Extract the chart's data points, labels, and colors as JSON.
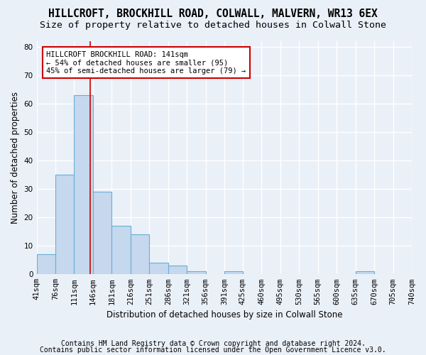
{
  "title": "HILLCROFT, BROCKHILL ROAD, COLWALL, MALVERN, WR13 6EX",
  "subtitle": "Size of property relative to detached houses in Colwall Stone",
  "xlabel": "Distribution of detached houses by size in Colwall Stone",
  "ylabel": "Number of detached properties",
  "footer1": "Contains HM Land Registry data © Crown copyright and database right 2024.",
  "footer2": "Contains public sector information licensed under the Open Government Licence v3.0.",
  "bar_edges": [
    41,
    76,
    111,
    146,
    181,
    216,
    251,
    286,
    321,
    356,
    391,
    425,
    460,
    495,
    530,
    565,
    600,
    635,
    670,
    705,
    740
  ],
  "bar_heights": [
    7,
    35,
    63,
    29,
    17,
    14,
    4,
    3,
    1,
    0,
    1,
    0,
    0,
    0,
    0,
    0,
    0,
    1,
    0,
    0
  ],
  "bar_color": "#c5d8ed",
  "bar_edge_color": "#6aaed6",
  "ylim": [
    0,
    82
  ],
  "yticks": [
    0,
    10,
    20,
    30,
    40,
    50,
    60,
    70,
    80
  ],
  "property_size": 141,
  "vline_color": "#cc0000",
  "annotation_text": "HILLCROFT BROCKHILL ROAD: 141sqm\n← 54% of detached houses are smaller (95)\n45% of semi-detached houses are larger (79) →",
  "annotation_box_color": "#ffffff",
  "annotation_box_edge": "#cc0000",
  "bg_color": "#eaf0f8",
  "plot_bg": "#eaf0f8",
  "grid_color": "#ffffff",
  "title_fontsize": 10.5,
  "subtitle_fontsize": 9.5,
  "axis_label_fontsize": 8.5,
  "tick_fontsize": 7.5,
  "footer_fontsize": 7.0
}
